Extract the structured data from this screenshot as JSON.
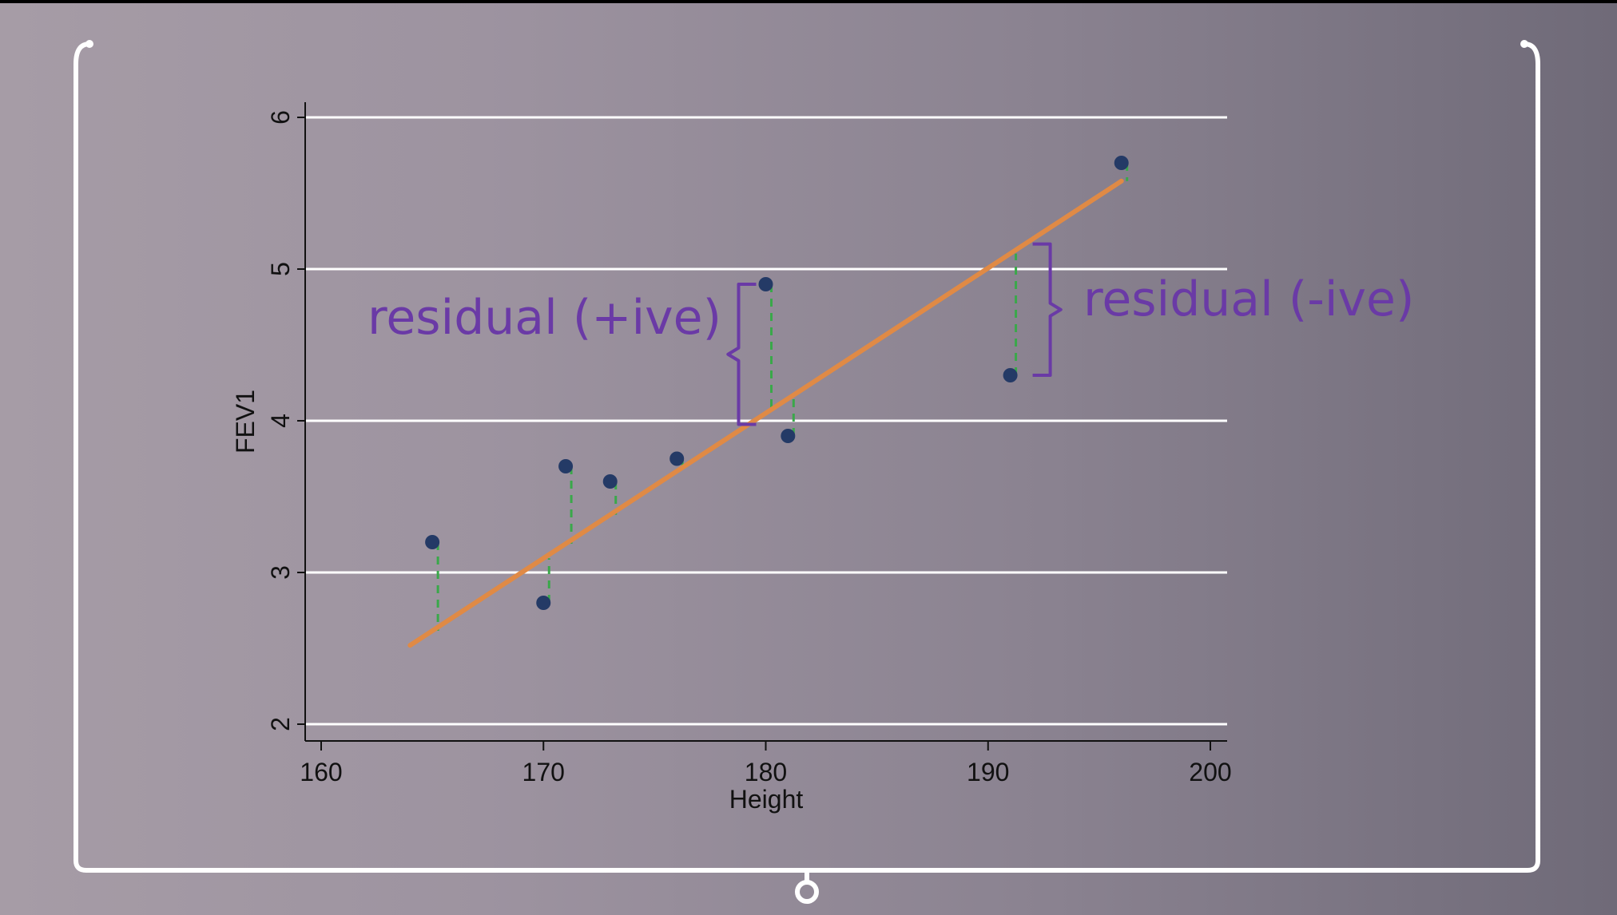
{
  "colors": {
    "background": "#9d93a0",
    "frame": "#ffffff",
    "grid": "#ffffff",
    "point": "#243a66",
    "fit_line": "#e08a45",
    "residual": "#3aa84a",
    "annotation": "#6a3aa6",
    "text": "#111111"
  },
  "chart_data": {
    "type": "scatter",
    "title": "",
    "xlabel": "Height",
    "ylabel": "FEV1",
    "xlim": [
      160,
      200
    ],
    "ylim": [
      2,
      6
    ],
    "xticks": [
      160,
      170,
      180,
      190,
      200
    ],
    "yticks": [
      2,
      3,
      4,
      5,
      6
    ],
    "grid": "horizontal",
    "points": [
      {
        "x": 165,
        "y": 3.2
      },
      {
        "x": 170,
        "y": 2.8
      },
      {
        "x": 171,
        "y": 3.7
      },
      {
        "x": 173,
        "y": 3.6
      },
      {
        "x": 176,
        "y": 3.75
      },
      {
        "x": 180,
        "y": 4.9
      },
      {
        "x": 181,
        "y": 3.9
      },
      {
        "x": 191,
        "y": 4.3
      },
      {
        "x": 196,
        "y": 5.7
      }
    ],
    "fit_line": {
      "x": [
        164,
        196
      ],
      "y": [
        2.52,
        5.58
      ]
    },
    "residual_lines": true,
    "annotations": [
      {
        "text": "residual (+ive)",
        "point_index": 5
      },
      {
        "text": "residual (-ive)",
        "point_index": 7
      }
    ]
  }
}
